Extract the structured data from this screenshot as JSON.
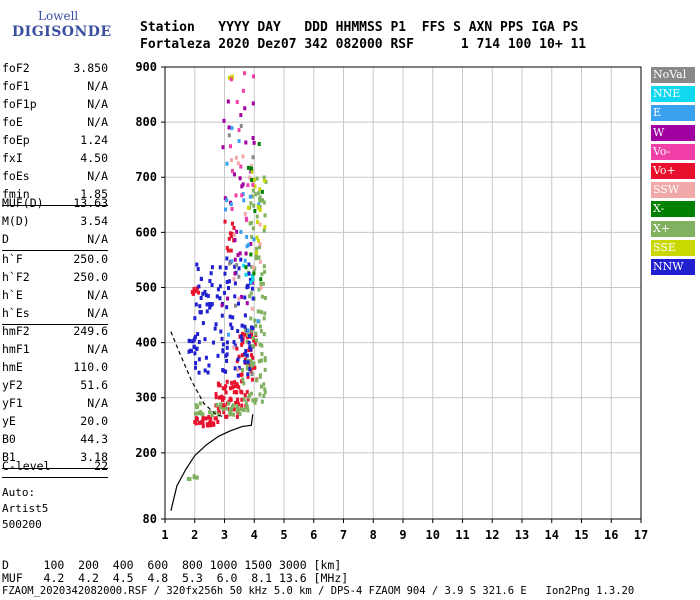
{
  "logo": {
    "line1": "Lowell",
    "line2": "DIGISONDE"
  },
  "header": {
    "row1": "Station   YYYY DAY   DDD HHMMSS P1  FFS S AXN PPS IGA PS",
    "row2": "Fortaleza 2020 Dez07 342 082000 RSF      1 714 100 10+ 11"
  },
  "params_group1": [
    {
      "label": "foF2",
      "value": "3.850"
    },
    {
      "label": "foF1",
      "value": "N/A"
    },
    {
      "label": "foF1p",
      "value": "N/A"
    },
    {
      "label": "foE",
      "value": "N/A"
    },
    {
      "label": "foEp",
      "value": "1.24"
    },
    {
      "label": "fxI",
      "value": "4.50"
    },
    {
      "label": "foEs",
      "value": "N/A"
    },
    {
      "label": "fmin",
      "value": "1.85"
    }
  ],
  "params_group2": [
    {
      "label": "MUF(D)",
      "value": "13.63"
    },
    {
      "label": "M(D)",
      "value": "3.54"
    },
    {
      "label": "D",
      "value": "N/A"
    }
  ],
  "params_group3": [
    {
      "label": "h`F",
      "value": "250.0"
    },
    {
      "label": "h`F2",
      "value": "250.0"
    },
    {
      "label": "h`E",
      "value": "N/A"
    },
    {
      "label": "h`Es",
      "value": "N/A"
    }
  ],
  "params_group4": [
    {
      "label": "hmF2",
      "value": "249.6"
    },
    {
      "label": "hmF1",
      "value": "N/A"
    },
    {
      "label": "hmE",
      "value": "110.0"
    },
    {
      "label": "yF2",
      "value": "51.6"
    },
    {
      "label": "yF1",
      "value": "N/A"
    },
    {
      "label": "yE",
      "value": "20.0"
    },
    {
      "label": "B0",
      "value": "44.3"
    },
    {
      "label": "B1",
      "value": "3.18"
    }
  ],
  "params_group5": [
    {
      "label": "C-level",
      "value": "22"
    }
  ],
  "auto": {
    "line1": "Auto:",
    "line2": "Artist5",
    "line3": "500200"
  },
  "legend": [
    {
      "label": "NoVal",
      "color": "#888888"
    },
    {
      "label": "NNE",
      "color": "#10d8f0"
    },
    {
      "label": "E",
      "color": "#3aa0f0"
    },
    {
      "label": "W",
      "color": "#a000a0"
    },
    {
      "label": "Vo-",
      "color": "#f040a8"
    },
    {
      "label": "Vo+",
      "color": "#e8102c"
    },
    {
      "label": "SSW",
      "color": "#f0a8a8"
    },
    {
      "label": "X-",
      "color": "#008000"
    },
    {
      "label": "X+",
      "color": "#80b060"
    },
    {
      "label": "SSE",
      "color": "#c8d800"
    },
    {
      "label": "NNW",
      "color": "#2020d0"
    }
  ],
  "footer": {
    "row1": "D     100  200  400  600  800 1000 1500 3000 [km]",
    "row2": "MUF   4.2  4.2  4.5  4.8  5.3  6.0  8.1 13.6 [MHz]",
    "row3": "FZAOM_2020342082000.RSF / 320fx256h 50 kHz 5.0 km / DPS-4 FZAOM 904 / 3.9 S 321.6 E   Ion2Png 1.3.20"
  },
  "chart_data": {
    "type": "scatter",
    "xlim": [
      1,
      17
    ],
    "ylim": [
      80,
      900
    ],
    "xticks": [
      "1",
      "2",
      "3",
      "4",
      "5",
      "6",
      "7",
      "8",
      "9",
      "10",
      "11",
      "12",
      "13",
      "14",
      "15",
      "16",
      "17"
    ],
    "yticks": [
      "80",
      "200",
      "300",
      "400",
      "500",
      "600",
      "700",
      "800",
      "900"
    ],
    "grid": true,
    "legend_placement": "right",
    "profile_curve": {
      "x": [
        1.2,
        1.4,
        1.7,
        2.0,
        2.4,
        2.8,
        3.2,
        3.6,
        3.9,
        3.95
      ],
      "y": [
        95,
        140,
        170,
        195,
        215,
        230,
        240,
        248,
        250,
        270
      ]
    },
    "trace_curve": {
      "x": [
        1.2,
        1.5,
        1.9,
        2.3,
        2.7,
        3.0
      ],
      "y": [
        420,
        380,
        330,
        290,
        270,
        265
      ]
    },
    "clusters": [
      {
        "series": "Vo+",
        "x": [
          1.9,
          2.8
        ],
        "y": [
          248,
          265
        ],
        "n": 30
      },
      {
        "series": "Vo+",
        "x": [
          2.7,
          3.8
        ],
        "y": [
          265,
          330
        ],
        "n": 60
      },
      {
        "series": "Vo+",
        "x": [
          3.4,
          4.1
        ],
        "y": [
          330,
          420
        ],
        "n": 40
      },
      {
        "series": "Vo+",
        "x": [
          1.9,
          2.2
        ],
        "y": [
          488,
          500
        ],
        "n": 8
      },
      {
        "series": "Vo+",
        "x": [
          3.0,
          3.4
        ],
        "y": [
          560,
          620
        ],
        "n": 12
      },
      {
        "series": "X+",
        "x": [
          2.0,
          3.8
        ],
        "y": [
          268,
          290
        ],
        "n": 40
      },
      {
        "series": "X+",
        "x": [
          3.6,
          4.4
        ],
        "y": [
          290,
          450
        ],
        "n": 60
      },
      {
        "series": "X+",
        "x": [
          3.8,
          4.4
        ],
        "y": [
          450,
          700
        ],
        "n": 50
      },
      {
        "series": "X+",
        "x": [
          1.7,
          2.1
        ],
        "y": [
          150,
          158
        ],
        "n": 6
      },
      {
        "series": "NNW",
        "x": [
          2.0,
          4.0
        ],
        "y": [
          340,
          560
        ],
        "n": 120
      },
      {
        "series": "NNW",
        "x": [
          1.8,
          2.1
        ],
        "y": [
          380,
          410
        ],
        "n": 12
      },
      {
        "series": "W",
        "x": [
          2.9,
          4.0
        ],
        "y": [
          450,
          850
        ],
        "n": 30
      },
      {
        "series": "E",
        "x": [
          3.0,
          4.2
        ],
        "y": [
          400,
          800
        ],
        "n": 20
      },
      {
        "series": "SSE",
        "x": [
          3.8,
          4.4
        ],
        "y": [
          550,
          720
        ],
        "n": 14
      },
      {
        "series": "SSE",
        "x": [
          3.1,
          3.3
        ],
        "y": [
          870,
          890
        ],
        "n": 3
      },
      {
        "series": "SSW",
        "x": [
          3.2,
          4.3
        ],
        "y": [
          350,
          800
        ],
        "n": 18
      },
      {
        "series": "Vo-",
        "x": [
          3.2,
          4.0
        ],
        "y": [
          600,
          900
        ],
        "n": 16
      },
      {
        "series": "NNE",
        "x": [
          3.5,
          4.0
        ],
        "y": [
          480,
          560
        ],
        "n": 5
      },
      {
        "series": "X-",
        "x": [
          3.6,
          4.3
        ],
        "y": [
          500,
          800
        ],
        "n": 10
      },
      {
        "series": "NoVal",
        "x": [
          3.0,
          4.0
        ],
        "y": [
          300,
          850
        ],
        "n": 8
      }
    ]
  }
}
